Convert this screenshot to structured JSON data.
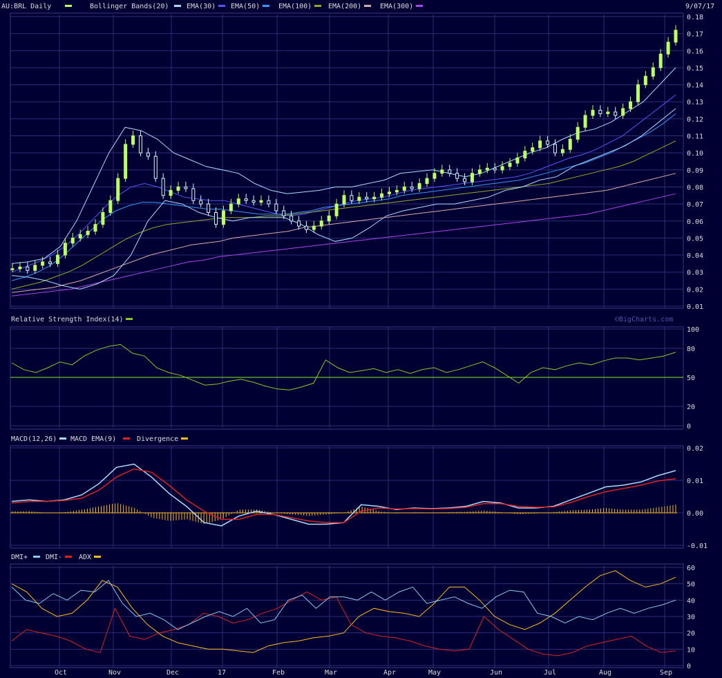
{
  "header": {
    "symbol_label": "AU:BRL Daily",
    "date": "9/07/17",
    "legend": [
      {
        "label": "Bollinger Bands(20)",
        "color": "#aaddff"
      },
      {
        "label": "EMA(30)",
        "color": "#5555ff"
      },
      {
        "label": "EMA(50)",
        "color": "#3399ff"
      },
      {
        "label": "EMA(100)",
        "color": "#99aa22"
      },
      {
        "label": "EMA(200)",
        "color": "#ddaaaa"
      },
      {
        "label": "EMA(300)",
        "color": "#aa44ee"
      }
    ]
  },
  "watermark": "©BigCharts.com",
  "colors": {
    "background": "#000033",
    "grid": "#2e2e7a",
    "axis_text": "#dddddd",
    "price_bars": "#bbff66",
    "price_hollow": "#ccffff",
    "rsi": "#88cc22",
    "rsi_line50": "#88ee22",
    "macd": "#aaddff",
    "macd_ema": "#dd2222",
    "divergence": "#ffbb22",
    "dmi_plus": "#88ccee",
    "dmi_minus": "#dd2222",
    "adx": "#ffbb22"
  },
  "x_labels": [
    "Oct",
    "Nov",
    "Dec",
    "17",
    "Feb",
    "Mar",
    "Apr",
    "May",
    "Jun",
    "Jul",
    "Aug",
    "Sep"
  ],
  "chart_data": [
    {
      "type": "line",
      "panel": "price",
      "title": "AU:BRL Daily",
      "y_ticks": [
        "0.18",
        "0.17",
        "0.16",
        "0.15",
        "0.14",
        "0.13",
        "0.12",
        "0.11",
        "0.10",
        "0.09",
        "0.08",
        "0.07",
        "0.06",
        "0.05",
        "0.04",
        "0.03",
        "0.02",
        "0.01"
      ],
      "ylim": [
        0.01,
        0.18
      ],
      "x_range": [
        "Sep 2016",
        "Sep 2017"
      ],
      "grid": true,
      "series": [
        {
          "name": "AU:BRL Daily",
          "values": [
            0.032,
            0.033,
            0.031,
            0.034,
            0.036,
            0.035,
            0.04,
            0.047,
            0.05,
            0.052,
            0.054,
            0.058,
            0.065,
            0.072,
            0.085,
            0.105,
            0.11,
            0.1,
            0.098,
            0.085,
            0.075,
            0.078,
            0.08,
            0.079,
            0.072,
            0.07,
            0.065,
            0.058,
            0.066,
            0.07,
            0.073,
            0.072,
            0.071,
            0.072,
            0.07,
            0.066,
            0.063,
            0.06,
            0.057,
            0.055,
            0.057,
            0.06,
            0.063,
            0.07,
            0.075,
            0.072,
            0.074,
            0.073,
            0.074,
            0.076,
            0.077,
            0.078,
            0.08,
            0.079,
            0.082,
            0.085,
            0.088,
            0.09,
            0.088,
            0.085,
            0.083,
            0.088,
            0.09,
            0.091,
            0.09,
            0.092,
            0.094,
            0.097,
            0.101,
            0.103,
            0.107,
            0.105,
            0.1,
            0.102,
            0.108,
            0.115,
            0.122,
            0.125,
            0.123,
            0.124,
            0.122,
            0.126,
            0.13,
            0.14,
            0.145,
            0.15,
            0.158,
            0.165,
            0.172
          ]
        },
        {
          "name": "EMA(30)",
          "values": [
            0.03,
            0.033,
            0.036,
            0.04,
            0.045,
            0.052,
            0.06,
            0.068,
            0.075,
            0.08,
            0.082,
            0.08,
            0.077,
            0.074,
            0.073,
            0.072,
            0.072,
            0.07,
            0.068,
            0.066,
            0.064,
            0.063,
            0.064,
            0.066,
            0.068,
            0.07,
            0.072,
            0.073,
            0.074,
            0.076,
            0.078,
            0.079,
            0.08,
            0.081,
            0.082,
            0.083,
            0.084,
            0.085,
            0.086,
            0.088,
            0.091,
            0.094,
            0.097,
            0.099,
            0.102,
            0.106,
            0.11,
            0.116,
            0.122,
            0.128,
            0.134
          ]
        },
        {
          "name": "EMA(50)",
          "values": [
            0.025,
            0.027,
            0.03,
            0.034,
            0.04,
            0.047,
            0.054,
            0.061,
            0.066,
            0.069,
            0.071,
            0.071,
            0.07,
            0.069,
            0.068,
            0.067,
            0.067,
            0.066,
            0.065,
            0.064,
            0.064,
            0.064,
            0.065,
            0.066,
            0.068,
            0.069,
            0.07,
            0.071,
            0.072,
            0.073,
            0.075,
            0.076,
            0.077,
            0.078,
            0.079,
            0.08,
            0.081,
            0.082,
            0.083,
            0.084,
            0.086,
            0.088,
            0.09,
            0.092,
            0.094,
            0.097,
            0.1,
            0.104,
            0.108,
            0.112,
            0.117,
            0.123
          ]
        },
        {
          "name": "EMA(100)",
          "values": [
            0.02,
            0.022,
            0.024,
            0.027,
            0.03,
            0.034,
            0.039,
            0.044,
            0.049,
            0.053,
            0.056,
            0.058,
            0.059,
            0.06,
            0.061,
            0.062,
            0.062,
            0.062,
            0.063,
            0.063,
            0.064,
            0.065,
            0.066,
            0.067,
            0.068,
            0.069,
            0.07,
            0.071,
            0.072,
            0.073,
            0.074,
            0.075,
            0.076,
            0.077,
            0.078,
            0.079,
            0.08,
            0.081,
            0.082,
            0.084,
            0.086,
            0.088,
            0.09,
            0.092,
            0.095,
            0.099,
            0.103,
            0.107
          ]
        },
        {
          "name": "EMA(200)",
          "values": [
            0.018,
            0.019,
            0.02,
            0.021,
            0.023,
            0.025,
            0.028,
            0.031,
            0.034,
            0.037,
            0.04,
            0.042,
            0.044,
            0.046,
            0.047,
            0.048,
            0.05,
            0.051,
            0.052,
            0.053,
            0.054,
            0.056,
            0.057,
            0.058,
            0.059,
            0.06,
            0.061,
            0.062,
            0.063,
            0.064,
            0.065,
            0.066,
            0.067,
            0.068,
            0.069,
            0.07,
            0.071,
            0.072,
            0.073,
            0.074,
            0.075,
            0.076,
            0.077,
            0.078,
            0.08,
            0.082,
            0.084,
            0.086,
            0.088
          ]
        },
        {
          "name": "EMA(300)",
          "values": [
            0.016,
            0.017,
            0.018,
            0.019,
            0.02,
            0.022,
            0.024,
            0.026,
            0.028,
            0.03,
            0.032,
            0.034,
            0.036,
            0.037,
            0.039,
            0.04,
            0.041,
            0.042,
            0.043,
            0.044,
            0.045,
            0.046,
            0.047,
            0.048,
            0.049,
            0.05,
            0.051,
            0.052,
            0.053,
            0.054,
            0.055,
            0.056,
            0.057,
            0.058,
            0.059,
            0.06,
            0.061,
            0.062,
            0.063,
            0.064,
            0.066,
            0.068,
            0.07,
            0.072,
            0.074,
            0.076
          ]
        },
        {
          "name": "Bollinger Bands(20) upper",
          "values": [
            0.035,
            0.036,
            0.038,
            0.045,
            0.06,
            0.08,
            0.1,
            0.115,
            0.113,
            0.108,
            0.1,
            0.096,
            0.092,
            0.09,
            0.088,
            0.082,
            0.078,
            0.076,
            0.077,
            0.078,
            0.08,
            0.08,
            0.082,
            0.084,
            0.088,
            0.089,
            0.09,
            0.088,
            0.086,
            0.088,
            0.092,
            0.096,
            0.1,
            0.103,
            0.108,
            0.112,
            0.114,
            0.118,
            0.124,
            0.13,
            0.14,
            0.15
          ]
        },
        {
          "name": "Bollinger Bands(20) lower",
          "values": [
            0.028,
            0.027,
            0.025,
            0.022,
            0.02,
            0.023,
            0.028,
            0.04,
            0.06,
            0.072,
            0.07,
            0.065,
            0.062,
            0.06,
            0.062,
            0.062,
            0.062,
            0.058,
            0.052,
            0.048,
            0.05,
            0.056,
            0.063,
            0.066,
            0.068,
            0.07,
            0.07,
            0.072,
            0.074,
            0.078,
            0.08,
            0.084,
            0.086,
            0.092,
            0.096,
            0.1,
            0.104,
            0.11,
            0.118,
            0.126
          ]
        }
      ]
    },
    {
      "type": "line",
      "panel": "rsi",
      "title": "Relative Strength Index(14)",
      "y_ticks": [
        "100",
        "80",
        "50",
        "20",
        "0"
      ],
      "ylim": [
        0,
        100
      ],
      "reference_line": 50,
      "series": [
        {
          "name": "Relative Strength Index(14)",
          "values": [
            65,
            58,
            55,
            60,
            66,
            63,
            72,
            78,
            82,
            84,
            75,
            72,
            60,
            55,
            52,
            47,
            42,
            43,
            46,
            48,
            45,
            41,
            38,
            37,
            40,
            44,
            68,
            60,
            55,
            57,
            59,
            55,
            58,
            54,
            58,
            60,
            55,
            58,
            62,
            66,
            60,
            52,
            44,
            55,
            60,
            58,
            62,
            65,
            63,
            67,
            70,
            70,
            68,
            70,
            72,
            76
          ]
        }
      ]
    },
    {
      "type": "line",
      "panel": "macd",
      "title": "MACD(12,26)",
      "y_ticks": [
        "0.02",
        "0.01",
        "0.00",
        "-0.01"
      ],
      "ylim": [
        -0.01,
        0.02
      ],
      "series": [
        {
          "name": "MACD(12,26)",
          "values": [
            0.0035,
            0.004,
            0.0035,
            0.004,
            0.0055,
            0.009,
            0.014,
            0.015,
            0.011,
            0.006,
            0.002,
            -0.003,
            -0.004,
            -0.001,
            0.0005,
            -0.0005,
            -0.002,
            -0.0035,
            -0.0035,
            -0.003,
            0.0025,
            0.002,
            0.001,
            0.0015,
            0.0013,
            0.0015,
            0.002,
            0.0035,
            0.003,
            0.0015,
            0.0015,
            0.002,
            0.004,
            0.006,
            0.008,
            0.0085,
            0.0095,
            0.0115,
            0.013
          ]
        },
        {
          "name": "MACD EMA(9)",
          "values": [
            0.003,
            0.0035,
            0.0035,
            0.0038,
            0.0045,
            0.007,
            0.011,
            0.0135,
            0.0125,
            0.0085,
            0.004,
            0.0005,
            -0.002,
            -0.002,
            -0.0005,
            -0.0005,
            -0.0015,
            -0.0025,
            -0.003,
            -0.003,
            0.0005,
            0.0015,
            0.0012,
            0.0013,
            0.0012,
            0.0013,
            0.0017,
            0.0028,
            0.0028,
            0.002,
            0.0017,
            0.0018,
            0.0032,
            0.005,
            0.0065,
            0.0075,
            0.0085,
            0.0098,
            0.0105
          ]
        },
        {
          "name": "Divergence",
          "values": [
            0.0005,
            0.0005,
            0.0,
            0.0002,
            0.001,
            0.002,
            0.003,
            0.0015,
            -0.0015,
            -0.0025,
            -0.002,
            -0.0035,
            -0.002,
            0.001,
            0.001,
            0.0,
            -0.0005,
            -0.001,
            -0.0005,
            0.0,
            0.002,
            0.0005,
            -0.0002,
            0.0002,
            0.0001,
            0.0002,
            0.0003,
            0.0007,
            0.0002,
            -0.0005,
            -0.0002,
            0.0002,
            0.0008,
            0.001,
            0.0015,
            0.001,
            0.001,
            0.0017,
            0.0025
          ]
        }
      ]
    },
    {
      "type": "line",
      "panel": "dmi",
      "title": "DMI+ DMI- ADX",
      "y_ticks": [
        "60",
        "50",
        "40",
        "30",
        "20",
        "10",
        "0"
      ],
      "ylim": [
        0,
        60
      ],
      "series": [
        {
          "name": "DMI+",
          "values": [
            48,
            40,
            38,
            44,
            40,
            46,
            45,
            52,
            38,
            30,
            32,
            28,
            22,
            26,
            30,
            33,
            30,
            35,
            26,
            28,
            40,
            43,
            35,
            42,
            42,
            40,
            45,
            40,
            45,
            48,
            38,
            40,
            42,
            38,
            35,
            42,
            46,
            45,
            32,
            30,
            26,
            30,
            28,
            32,
            35,
            32,
            35,
            37,
            40
          ]
        },
        {
          "name": "DMI-",
          "values": [
            15,
            22,
            20,
            18,
            15,
            10,
            8,
            35,
            18,
            16,
            20,
            22,
            25,
            32,
            30,
            26,
            28,
            32,
            35,
            40,
            45,
            40,
            42,
            25,
            20,
            18,
            17,
            15,
            12,
            10,
            9,
            10,
            30,
            22,
            16,
            10,
            7,
            6,
            8,
            12,
            14,
            16,
            18,
            12,
            8,
            9
          ]
        },
        {
          "name": "ADX",
          "values": [
            50,
            45,
            35,
            30,
            32,
            40,
            52,
            48,
            35,
            25,
            18,
            14,
            12,
            10,
            10,
            9,
            8,
            12,
            14,
            15,
            17,
            18,
            20,
            30,
            35,
            33,
            32,
            30,
            38,
            48,
            48,
            40,
            30,
            25,
            22,
            26,
            32,
            40,
            48,
            55,
            58,
            52,
            48,
            50,
            54
          ]
        }
      ]
    }
  ]
}
